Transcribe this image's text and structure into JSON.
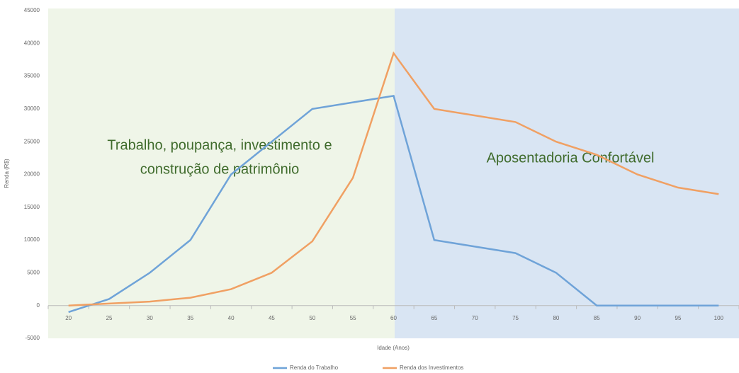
{
  "chart_data": {
    "type": "line",
    "ylabel": "Renda (R$)",
    "xlabel": "Idade (Anos)",
    "categories": [
      "20",
      "25",
      "30",
      "35",
      "40",
      "45",
      "50",
      "55",
      "60",
      "65",
      "70",
      "75",
      "80",
      "85",
      "90",
      "95",
      "100"
    ],
    "series": [
      {
        "name": "Renda do Trabalho",
        "color": "#6fa3d8",
        "values": [
          -1000,
          1000,
          5000,
          10000,
          20000,
          25000,
          30000,
          31000,
          32000,
          10000,
          9000,
          8000,
          5000,
          0,
          0,
          0,
          0
        ]
      },
      {
        "name": "Renda dos Investimentos",
        "color": "#f0a063",
        "values": [
          0,
          300,
          600,
          1200,
          2500,
          5000,
          9800,
          19500,
          38500,
          30000,
          29000,
          28000,
          25000,
          23000,
          20000,
          18000,
          17000
        ]
      }
    ],
    "ylim": [
      -5000,
      45000
    ],
    "yticks": [
      -5000,
      0,
      5000,
      10000,
      15000,
      20000,
      25000,
      30000,
      35000,
      40000,
      45000
    ],
    "grid": false,
    "legend": "bottom",
    "annotations": [
      "Trabalho, poupança, investimento e",
      "construção de patrimônio",
      "Aposentadoria Confortável"
    ]
  }
}
